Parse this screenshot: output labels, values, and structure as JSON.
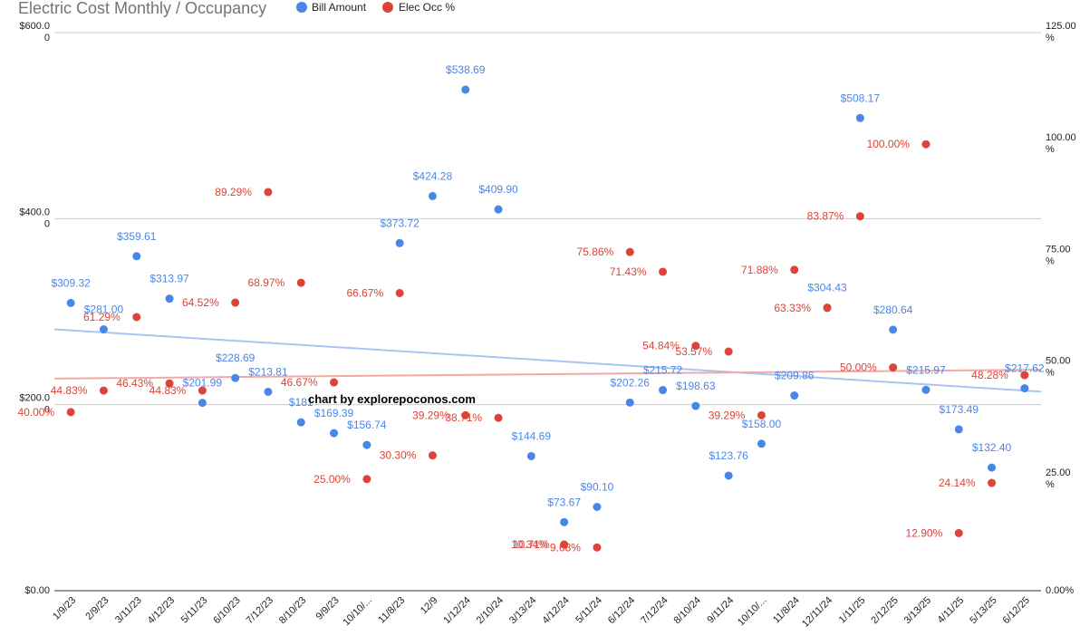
{
  "chart_data": {
    "type": "scatter",
    "title": "Electric Cost Monthly / Occupancy",
    "watermark": "chart by explorepoconos.com",
    "categories": [
      "1/9/23",
      "2/9/23",
      "3/11/23",
      "4/12/23",
      "5/11/23",
      "6/10/23",
      "7/12/23",
      "8/10/23",
      "9/9/23",
      "10/10/...",
      "11/8/23",
      "12/9",
      "1/12/24",
      "2/10/24",
      "3/13/24",
      "4/12/24",
      "5/11/24",
      "6/12/24",
      "7/12/24",
      "8/10/24",
      "9/11/24",
      "10/10/...",
      "11/8/24",
      "12/11/24",
      "1/11/25",
      "2/12/25",
      "3/13/25",
      "4/11/25",
      "5/13/25",
      "6/12/25"
    ],
    "series": [
      {
        "name": "Bill Amount",
        "axis": "left",
        "color": "#4a86e8",
        "values": [
          309.32,
          281.0,
          359.61,
          313.97,
          201.99,
          228.69,
          213.81,
          181.0,
          169.39,
          156.74,
          373.72,
          424.28,
          538.69,
          409.9,
          144.69,
          73.67,
          90.1,
          202.26,
          215.72,
          198.63,
          123.76,
          158.0,
          209.86,
          304.43,
          508.17,
          280.64,
          215.97,
          173.49,
          132.4,
          217.62
        ],
        "labels": [
          "$309.32",
          "$281.00",
          "$359.61",
          "$313.97",
          "$201.99",
          "$228.69",
          "$213.81",
          "$181",
          "$169.39",
          "$156.74",
          "$373.72",
          "$424.28",
          "$538.69",
          "$409.90",
          "$144.69",
          "$73.67",
          "$90.10",
          "$202.26",
          "$215.72",
          "$198.63",
          "$123.76",
          "$158.00",
          "$209.86",
          "$304.43",
          "$508.17",
          "$280.64",
          "$215.97",
          "$173.49",
          "$132.40",
          "$217.62"
        ]
      },
      {
        "name": "Elec Occ %",
        "axis": "right",
        "color": "#db4437",
        "values": [
          40.0,
          44.83,
          61.29,
          46.43,
          44.83,
          64.52,
          89.29,
          68.97,
          46.67,
          25.0,
          66.67,
          30.3,
          39.29,
          38.71,
          null,
          10.34,
          9.68,
          75.86,
          71.43,
          54.84,
          53.57,
          39.29,
          71.88,
          63.33,
          83.87,
          50.0,
          100.0,
          12.9,
          24.14,
          48.28
        ],
        "labels": [
          "40.00%",
          "44.83%",
          "61.29%",
          "46.43%",
          "44.83%",
          "64.52%",
          "89.29%",
          "68.97%",
          "46.67%",
          "25.00%",
          "66.67%",
          "30.30%",
          "39.29%",
          "38.71%",
          "",
          "10.34%",
          "9.68%",
          "75.86%",
          "71.43%",
          "54.84%",
          "53.57%",
          "39.29%",
          "71.88%",
          "63.33%",
          "83.87%",
          "50.00%",
          "100.00%",
          "12.90%",
          "24.14%",
          "48.28%"
        ],
        "extra_labels": [
          {
            "index": 15,
            "text": "10.71%"
          }
        ]
      }
    ],
    "trendlines": [
      {
        "series": "Bill Amount",
        "color": "#a8c4f0",
        "start": 281,
        "end": 214
      },
      {
        "series": "Elec Occ %",
        "color": "#f2aaa4",
        "start": 47.5,
        "end": 49.5
      }
    ],
    "left_axis": {
      "min": 0,
      "max": 600,
      "ticks": [
        {
          "value": 0,
          "label": "$0.00",
          "sublabel": ""
        },
        {
          "value": 200,
          "label": "$200.0",
          "sublabel": "0"
        },
        {
          "value": 400,
          "label": "$400.0",
          "sublabel": "0"
        },
        {
          "value": 600,
          "label": "$600.0",
          "sublabel": "0"
        }
      ]
    },
    "right_axis": {
      "min": 0,
      "max": 125,
      "ticks": [
        {
          "value": 0,
          "label": "0.00%",
          "sublabel": ""
        },
        {
          "value": 25,
          "label": "25.00",
          "sublabel": "%"
        },
        {
          "value": 50,
          "label": "50.00",
          "sublabel": "%"
        },
        {
          "value": 75,
          "label": "75.00",
          "sublabel": "%"
        },
        {
          "value": 100,
          "label": "100.00",
          "sublabel": "%"
        },
        {
          "value": 125,
          "label": "125.00",
          "sublabel": "%"
        }
      ]
    },
    "grid": true,
    "legend_position": "top"
  }
}
